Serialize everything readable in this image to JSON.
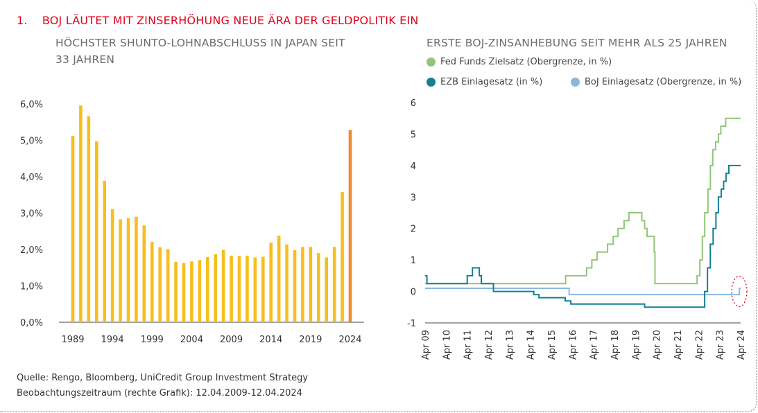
{
  "title_number": "1.",
  "title": "BOJ LÄUTET MIT ZINSERHÖHUNG NEUE ÄRA DER GELDPOLITIK EIN",
  "footer": {
    "source": "Quelle: Rengo, Bloomberg, UniCredit Group Investment Strategy",
    "period": "Beobachtungszeitraum (rechte Grafik): 12.04.2009-12.04.2024"
  },
  "chart_data": [
    {
      "type": "bar",
      "title_line1": "HÖCHSTER SHUNTO-LOHNABSCHLUSS IN JAPAN SEIT",
      "title_line2": "33 JAHREN",
      "categories": [
        1989,
        1990,
        1991,
        1992,
        1993,
        1994,
        1995,
        1996,
        1997,
        1998,
        1999,
        2000,
        2001,
        2002,
        2003,
        2004,
        2005,
        2006,
        2007,
        2008,
        2009,
        2010,
        2011,
        2012,
        2013,
        2014,
        2015,
        2016,
        2017,
        2018,
        2019,
        2020,
        2021,
        2022,
        2023,
        2024
      ],
      "values": [
        5.12,
        5.96,
        5.66,
        4.97,
        3.89,
        3.11,
        2.83,
        2.86,
        2.9,
        2.66,
        2.21,
        2.06,
        2.01,
        1.66,
        1.63,
        1.67,
        1.71,
        1.79,
        1.87,
        1.99,
        1.83,
        1.82,
        1.83,
        1.78,
        1.8,
        2.19,
        2.38,
        2.14,
        1.98,
        2.07,
        2.07,
        1.9,
        1.78,
        2.07,
        3.58,
        5.28
      ],
      "colors": {
        "bar": "#f7be1d",
        "highlight": "#ee8a2f",
        "axis": "#444444"
      },
      "highlight_category": 2024,
      "ylim": [
        0,
        6
      ],
      "yticks": [
        "0,0%",
        "1,0%",
        "2,0%",
        "3,0%",
        "4,0%",
        "5,0%",
        "6,0%"
      ],
      "xticks": [
        "1989",
        "1994",
        "1999",
        "2004",
        "2009",
        "2014",
        "2019",
        "2024"
      ],
      "grid": false
    },
    {
      "type": "line",
      "title": "ERSTE BOJ-ZINSANHEBUNG SEIT MEHR ALS 25 JAHREN",
      "ylim": [
        -1,
        6
      ],
      "yticks": [
        "-1",
        "0",
        "1",
        "2",
        "3",
        "4",
        "5",
        "6"
      ],
      "xlim": [
        "2009-04-12",
        "2024-04-12"
      ],
      "xticks": [
        {
          "label": "Apr 09",
          "date": "2009-04-12"
        },
        {
          "label": "Apr 10",
          "date": "2010-04-12"
        },
        {
          "label": "Apr 11",
          "date": "2011-04-12"
        },
        {
          "label": "Apr 12",
          "date": "2012-04-12"
        },
        {
          "label": "Apr 13",
          "date": "2013-04-12"
        },
        {
          "label": "Apr 14",
          "date": "2014-04-12"
        },
        {
          "label": "Apr 15",
          "date": "2015-04-12"
        },
        {
          "label": "Apr 16",
          "date": "2016-04-12"
        },
        {
          "label": "Apr 17",
          "date": "2017-04-12"
        },
        {
          "label": "Apr 18",
          "date": "2018-04-12"
        },
        {
          "label": "Apr 19",
          "date": "2019-04-12"
        },
        {
          "label": "Apr 20",
          "date": "2020-04-12"
        },
        {
          "label": "Apr 21",
          "date": "2021-04-12"
        },
        {
          "label": "Apr 22",
          "date": "2022-04-12"
        },
        {
          "label": "Apr 23",
          "date": "2023-04-12"
        },
        {
          "label": "Apr 24",
          "date": "2024-04-12"
        }
      ],
      "grid": false,
      "legend_position": "top",
      "series": [
        {
          "name": "Fed Funds Zielsatz (Obergrenze, in %)",
          "color": "#92c57a",
          "points": [
            [
              "2009-04-12",
              0.25
            ],
            [
              "2015-12-17",
              0.25
            ],
            [
              "2015-12-17",
              0.5
            ],
            [
              "2016-12-15",
              0.5
            ],
            [
              "2016-12-15",
              0.75
            ],
            [
              "2017-03-16",
              0.75
            ],
            [
              "2017-03-16",
              1.0
            ],
            [
              "2017-06-15",
              1.0
            ],
            [
              "2017-06-15",
              1.25
            ],
            [
              "2017-12-14",
              1.25
            ],
            [
              "2017-12-14",
              1.5
            ],
            [
              "2018-03-22",
              1.5
            ],
            [
              "2018-03-22",
              1.75
            ],
            [
              "2018-06-14",
              1.75
            ],
            [
              "2018-06-14",
              2.0
            ],
            [
              "2018-09-27",
              2.0
            ],
            [
              "2018-09-27",
              2.25
            ],
            [
              "2018-12-20",
              2.25
            ],
            [
              "2018-12-20",
              2.5
            ],
            [
              "2019-08-01",
              2.5
            ],
            [
              "2019-08-01",
              2.25
            ],
            [
              "2019-09-19",
              2.25
            ],
            [
              "2019-09-19",
              2.0
            ],
            [
              "2019-10-31",
              2.0
            ],
            [
              "2019-10-31",
              1.75
            ],
            [
              "2020-03-03",
              1.75
            ],
            [
              "2020-03-03",
              1.25
            ],
            [
              "2020-03-16",
              1.25
            ],
            [
              "2020-03-16",
              0.25
            ],
            [
              "2022-03-17",
              0.25
            ],
            [
              "2022-03-17",
              0.5
            ],
            [
              "2022-05-05",
              0.5
            ],
            [
              "2022-05-05",
              1.0
            ],
            [
              "2022-06-16",
              1.0
            ],
            [
              "2022-06-16",
              1.75
            ],
            [
              "2022-07-28",
              1.75
            ],
            [
              "2022-07-28",
              2.5
            ],
            [
              "2022-09-22",
              2.5
            ],
            [
              "2022-09-22",
              3.25
            ],
            [
              "2022-11-03",
              3.25
            ],
            [
              "2022-11-03",
              4.0
            ],
            [
              "2022-12-15",
              4.0
            ],
            [
              "2022-12-15",
              4.5
            ],
            [
              "2023-02-02",
              4.5
            ],
            [
              "2023-02-02",
              4.75
            ],
            [
              "2023-03-23",
              4.75
            ],
            [
              "2023-03-23",
              5.0
            ],
            [
              "2023-05-04",
              5.0
            ],
            [
              "2023-05-04",
              5.25
            ],
            [
              "2023-07-27",
              5.25
            ],
            [
              "2023-07-27",
              5.5
            ],
            [
              "2024-04-12",
              5.5
            ]
          ]
        },
        {
          "name": "EZB Einlagesatz (in %)",
          "color": "#127f92",
          "points": [
            [
              "2009-04-12",
              0.5
            ],
            [
              "2009-05-13",
              0.5
            ],
            [
              "2009-05-13",
              0.25
            ],
            [
              "2011-04-13",
              0.25
            ],
            [
              "2011-04-13",
              0.5
            ],
            [
              "2011-07-13",
              0.5
            ],
            [
              "2011-07-13",
              0.75
            ],
            [
              "2011-11-09",
              0.75
            ],
            [
              "2011-11-09",
              0.5
            ],
            [
              "2011-12-14",
              0.5
            ],
            [
              "2011-12-14",
              0.25
            ],
            [
              "2012-07-11",
              0.25
            ],
            [
              "2012-07-11",
              0.0
            ],
            [
              "2014-06-11",
              0.0
            ],
            [
              "2014-06-11",
              -0.1
            ],
            [
              "2014-09-10",
              -0.1
            ],
            [
              "2014-09-10",
              -0.2
            ],
            [
              "2015-12-09",
              -0.2
            ],
            [
              "2015-12-09",
              -0.3
            ],
            [
              "2016-03-16",
              -0.3
            ],
            [
              "2016-03-16",
              -0.4
            ],
            [
              "2019-09-18",
              -0.4
            ],
            [
              "2019-09-18",
              -0.5
            ],
            [
              "2022-07-27",
              -0.5
            ],
            [
              "2022-07-27",
              0.0
            ],
            [
              "2022-09-14",
              0.0
            ],
            [
              "2022-09-14",
              0.75
            ],
            [
              "2022-11-02",
              0.75
            ],
            [
              "2022-11-02",
              1.5
            ],
            [
              "2022-12-21",
              1.5
            ],
            [
              "2022-12-21",
              2.0
            ],
            [
              "2023-02-08",
              2.0
            ],
            [
              "2023-02-08",
              2.5
            ],
            [
              "2023-03-22",
              2.5
            ],
            [
              "2023-03-22",
              3.0
            ],
            [
              "2023-05-10",
              3.0
            ],
            [
              "2023-05-10",
              3.25
            ],
            [
              "2023-06-21",
              3.25
            ],
            [
              "2023-06-21",
              3.5
            ],
            [
              "2023-08-02",
              3.5
            ],
            [
              "2023-08-02",
              3.75
            ],
            [
              "2023-09-20",
              3.75
            ],
            [
              "2023-09-20",
              4.0
            ],
            [
              "2024-04-12",
              4.0
            ]
          ]
        },
        {
          "name": "BoJ Einlagesatz (Obergrenze, in %)",
          "color": "#8ab7e0",
          "points": [
            [
              "2009-04-12",
              0.1
            ],
            [
              "2016-02-16",
              0.1
            ],
            [
              "2016-02-16",
              -0.1
            ],
            [
              "2024-03-19",
              -0.1
            ],
            [
              "2024-03-19",
              0.1
            ],
            [
              "2024-04-12",
              0.1
            ]
          ]
        }
      ],
      "annotation": {
        "type": "dotted-ellipse",
        "color": "#e2001a",
        "around": [
          "2024-03-19",
          0.0
        ]
      }
    }
  ]
}
